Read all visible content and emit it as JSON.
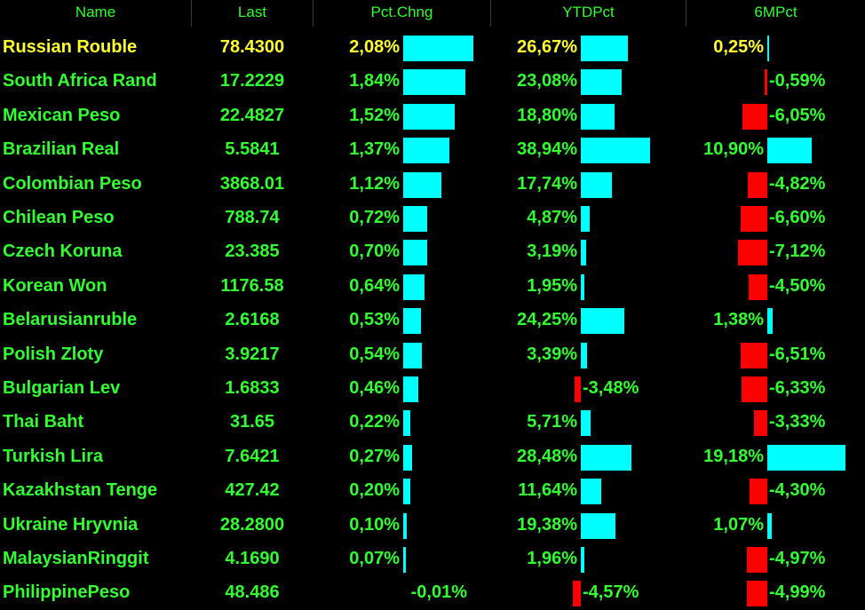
{
  "colors": {
    "background": "#000000",
    "header_text": "#33ff33",
    "row_text": "#33ff33",
    "highlight_text": "#ffff33",
    "positive_bar": "#00ffff",
    "negative_bar": "#ff0000"
  },
  "columns": [
    "Name",
    "Last",
    "Pct.Chng",
    "YTDPct",
    "6MPct"
  ],
  "rows": [
    {
      "name": "Russian Rouble",
      "last": "78.4300",
      "pct": "2,08%",
      "ytd": "26,67%",
      "m6": "0,25%",
      "highlight": true
    },
    {
      "name": "South Africa Rand",
      "last": "17.2229",
      "pct": "1,84%",
      "ytd": "23,08%",
      "m6": "-0,59%"
    },
    {
      "name": "Mexican Peso",
      "last": "22.4827",
      "pct": "1,52%",
      "ytd": "18,80%",
      "m6": "-6,05%"
    },
    {
      "name": "Brazilian Real",
      "last": "5.5841",
      "pct": "1,37%",
      "ytd": "38,94%",
      "m6": "10,90%"
    },
    {
      "name": "Colombian Peso",
      "last": "3868.01",
      "pct": "1,12%",
      "ytd": "17,74%",
      "m6": "-4,82%"
    },
    {
      "name": "Chilean Peso",
      "last": "788.74",
      "pct": "0,72%",
      "ytd": "4,87%",
      "m6": "-6,60%"
    },
    {
      "name": "Czech Koruna",
      "last": "23.385",
      "pct": "0,70%",
      "ytd": "3,19%",
      "m6": "-7,12%"
    },
    {
      "name": "Korean Won",
      "last": "1176.58",
      "pct": "0,64%",
      "ytd": "1,95%",
      "m6": "-4,50%"
    },
    {
      "name": "Belarusianruble",
      "last": "2.6168",
      "pct": "0,53%",
      "ytd": "24,25%",
      "m6": "1,38%"
    },
    {
      "name": "Polish Zloty",
      "last": "3.9217",
      "pct": "0,54%",
      "ytd": "3,39%",
      "m6": "-6,51%"
    },
    {
      "name": "Bulgarian Lev",
      "last": "1.6833",
      "pct": "0,46%",
      "ytd": "-3,48%",
      "m6": "-6,33%"
    },
    {
      "name": "Thai Baht",
      "last": "31.65",
      "pct": "0,22%",
      "ytd": "5,71%",
      "m6": "-3,33%"
    },
    {
      "name": "Turkish Lira",
      "last": "7.6421",
      "pct": "0,27%",
      "ytd": "28,48%",
      "m6": "19,18%"
    },
    {
      "name": "Kazakhstan Tenge",
      "last": "427.42",
      "pct": "0,20%",
      "ytd": "11,64%",
      "m6": "-4,30%"
    },
    {
      "name": "Ukraine Hryvnia",
      "last": "28.2800",
      "pct": "0,10%",
      "ytd": "19,38%",
      "m6": "1,07%"
    },
    {
      "name": "MalaysianRinggit",
      "last": "4.1690",
      "pct": "0,07%",
      "ytd": "1,96%",
      "m6": "-4,97%"
    },
    {
      "name": "PhilippinePeso",
      "last": "48.486",
      "pct": "-0,01%",
      "ytd": "-4,57%",
      "m6": "-4,99%"
    }
  ]
}
